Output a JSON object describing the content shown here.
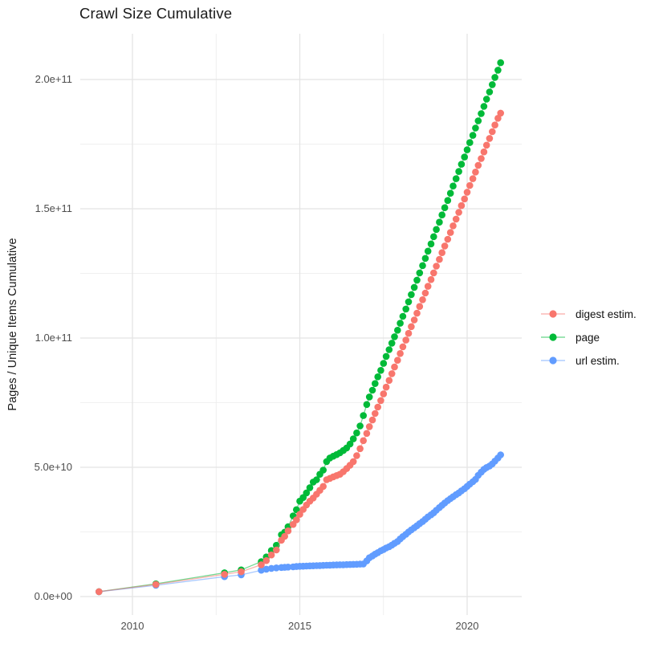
{
  "chart_data": {
    "type": "line",
    "title": "Crawl Size Cumulative",
    "xlabel": "",
    "ylabel": "Pages / Unique Items Cumulative",
    "legend_position": "right",
    "grid": "on",
    "y_values_unit": "1e9 (billions)",
    "x_ticks": {
      "labels": [
        "2010",
        "2015",
        "2020"
      ],
      "values": [
        2010,
        2015,
        2020
      ]
    },
    "x_minor_years": [
      2012.5,
      2017.5
    ],
    "y_ticks": {
      "labels": [
        "0.0e+00",
        "5.0e+10",
        "1.0e+11",
        "1.5e+11",
        "2.0e+11"
      ],
      "values_e9": [
        0,
        50,
        100,
        150,
        200
      ]
    },
    "y_minor_e9": [
      25,
      75,
      125,
      175
    ],
    "xlim": [
      2008.4,
      2021.6
    ],
    "ylim_e9": [
      -7,
      218
    ],
    "x": [
      2009.0,
      2010.7,
      2012.75,
      2013.25,
      2013.85,
      2014.0,
      2014.15,
      2014.3,
      2014.45,
      2014.55,
      2014.65,
      2014.8,
      2014.9,
      2015.0,
      2015.1,
      2015.2,
      2015.3,
      2015.4,
      2015.5,
      2015.6,
      2015.7,
      2015.8,
      2015.9,
      2016.0,
      2016.1,
      2016.2,
      2016.3,
      2016.4,
      2016.5,
      2016.6,
      2016.7,
      2016.8,
      2016.9,
      2017.0,
      2017.08,
      2017.17,
      2017.25,
      2017.33,
      2017.42,
      2017.5,
      2017.58,
      2017.67,
      2017.75,
      2017.83,
      2017.92,
      2018.0,
      2018.08,
      2018.17,
      2018.25,
      2018.33,
      2018.42,
      2018.5,
      2018.58,
      2018.67,
      2018.75,
      2018.83,
      2018.92,
      2019.0,
      2019.08,
      2019.17,
      2019.25,
      2019.33,
      2019.42,
      2019.5,
      2019.58,
      2019.67,
      2019.75,
      2019.83,
      2019.92,
      2020.0,
      2020.08,
      2020.17,
      2020.25,
      2020.33,
      2020.42,
      2020.5,
      2020.58,
      2020.67,
      2020.75,
      2020.83,
      2020.92,
      2021.0
    ],
    "series": [
      {
        "name": "digest estim.",
        "color": "#F8766D",
        "y_e9": [
          1.9,
          4.7,
          8.6,
          9.6,
          12.3,
          13.9,
          16.1,
          18.0,
          21.8,
          23.3,
          25.4,
          27.9,
          29.7,
          31.8,
          33.7,
          35.4,
          36.9,
          38.1,
          39.6,
          41.1,
          42.6,
          45.2,
          45.7,
          46.3,
          46.8,
          47.3,
          48.3,
          49.5,
          50.8,
          52.2,
          54.5,
          57.2,
          60.3,
          63.1,
          65.7,
          68.3,
          70.8,
          73.3,
          75.8,
          78.4,
          81.0,
          83.6,
          86.2,
          88.8,
          91.4,
          94.0,
          96.6,
          99.2,
          101.8,
          104.4,
          107.0,
          109.6,
          112.2,
          114.8,
          117.4,
          120.0,
          122.6,
          125.2,
          127.8,
          130.4,
          133.0,
          135.6,
          138.2,
          140.8,
          143.4,
          146.0,
          148.6,
          151.2,
          153.8,
          156.4,
          159.0,
          161.6,
          164.2,
          166.8,
          169.4,
          172.0,
          174.6,
          177.2,
          179.8,
          182.4,
          185.0,
          187.0
        ]
      },
      {
        "name": "page",
        "color": "#00BA38",
        "y_e9": [
          1.9,
          4.9,
          9.2,
          10.3,
          13.5,
          15.3,
          17.8,
          19.8,
          23.9,
          24.9,
          27.0,
          31.2,
          33.6,
          36.9,
          38.3,
          40.1,
          42.1,
          44.3,
          45.2,
          47.3,
          48.9,
          52.2,
          53.6,
          54.3,
          54.9,
          55.6,
          56.5,
          57.5,
          59.0,
          61.0,
          63.3,
          66.0,
          70.0,
          74.3,
          77.2,
          79.8,
          82.4,
          85.0,
          87.5,
          90.2,
          92.9,
          95.5,
          98.0,
          100.5,
          103.0,
          105.7,
          108.4,
          111.2,
          114.0,
          116.8,
          119.6,
          122.4,
          125.2,
          128.0,
          130.8,
          133.6,
          136.4,
          139.2,
          142.0,
          144.8,
          147.6,
          150.4,
          153.2,
          156.0,
          158.8,
          161.6,
          164.4,
          167.2,
          170.0,
          172.8,
          175.6,
          178.4,
          181.2,
          184.0,
          186.8,
          189.6,
          192.4,
          195.2,
          198.0,
          200.8,
          203.6,
          206.5
        ]
      },
      {
        "name": "url estim.",
        "color": "#619CFF",
        "y_e9": [
          1.85,
          4.35,
          7.7,
          8.4,
          10.2,
          10.6,
          10.9,
          11.1,
          11.25,
          11.3,
          11.4,
          11.5,
          11.6,
          11.7,
          11.75,
          11.8,
          11.85,
          11.9,
          11.95,
          12.0,
          12.05,
          12.1,
          12.15,
          12.2,
          12.25,
          12.3,
          12.3,
          12.35,
          12.4,
          12.45,
          12.5,
          12.55,
          12.6,
          13.8,
          15.0,
          15.7,
          16.4,
          17.0,
          17.7,
          18.2,
          18.8,
          19.3,
          19.9,
          20.6,
          21.3,
          22.3,
          23.2,
          24.1,
          25.0,
          25.8,
          26.6,
          27.4,
          28.2,
          29.0,
          29.9,
          30.8,
          31.6,
          32.4,
          33.4,
          34.4,
          35.3,
          36.2,
          37.1,
          37.9,
          38.6,
          39.4,
          40.1,
          40.9,
          41.7,
          42.6,
          43.5,
          44.4,
          45.3,
          46.9,
          48.1,
          49.2,
          49.9,
          50.5,
          51.3,
          52.4,
          53.6,
          54.8
        ]
      }
    ]
  }
}
